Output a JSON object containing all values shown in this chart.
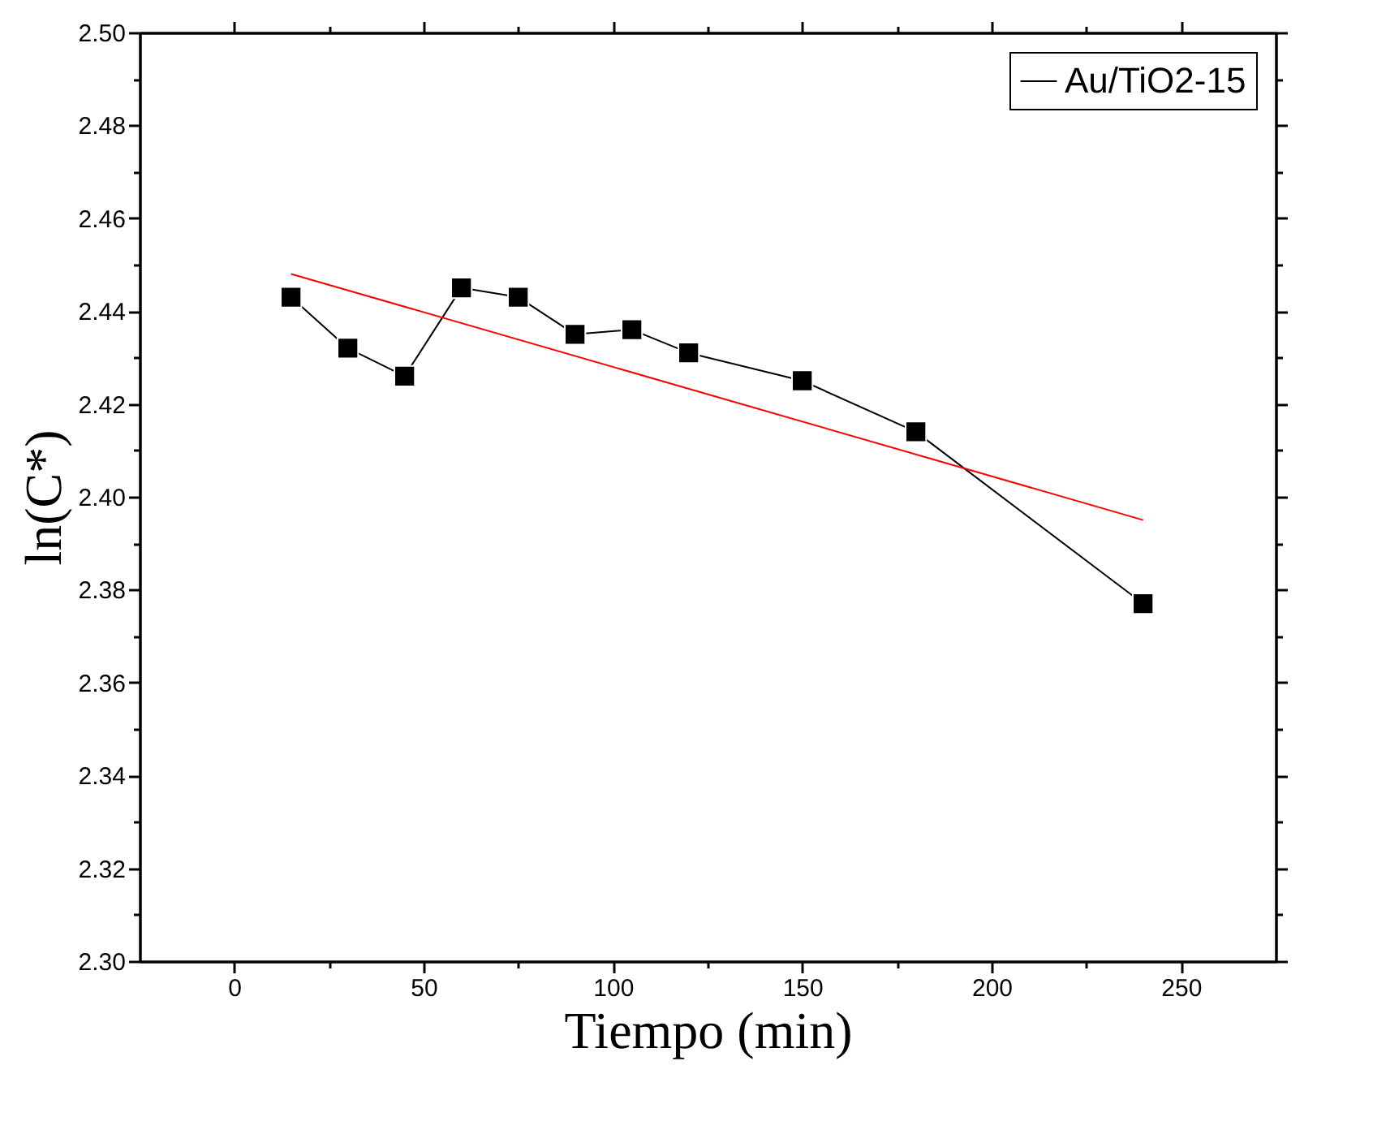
{
  "chart_data": {
    "type": "line",
    "xlabel": "Tiempo (min)",
    "ylabel": "ln(C*)",
    "marker": "square",
    "legend": "top right",
    "grid": false,
    "xlim": [
      -25,
      275
    ],
    "xticks": [
      0,
      50,
      100,
      150,
      200,
      250,
      {
        "value": 25,
        "label": null
      },
      {
        "value": 75,
        "label": null
      },
      {
        "value": 125,
        "label": null
      },
      {
        "value": 175,
        "label": null
      },
      {
        "value": 225,
        "label": null
      }
    ],
    "ylim": [
      2.3,
      2.5
    ],
    "yticks": [
      {
        "value": 2.3,
        "label": "2.30"
      },
      {
        "value": 2.32,
        "label": "2.32"
      },
      {
        "value": 2.34,
        "label": "2.34"
      },
      {
        "value": 2.36,
        "label": "2.36"
      },
      {
        "value": 2.38,
        "label": "2.38"
      },
      {
        "value": 2.4,
        "label": "2.40"
      },
      {
        "value": 2.42,
        "label": "2.42"
      },
      {
        "value": 2.44,
        "label": "2.44"
      },
      {
        "value": 2.46,
        "label": "2.46"
      },
      {
        "value": 2.48,
        "label": "2.48"
      },
      {
        "value": 2.5,
        "label": "2.50"
      },
      {
        "value": 2.31,
        "label": null
      },
      {
        "value": 2.33,
        "label": null
      },
      {
        "value": 2.35,
        "label": null
      },
      {
        "value": 2.37,
        "label": null
      },
      {
        "value": 2.39,
        "label": null
      },
      {
        "value": 2.41,
        "label": null
      },
      {
        "value": 2.43,
        "label": null
      },
      {
        "value": 2.45,
        "label": null
      },
      {
        "value": 2.47,
        "label": null
      },
      {
        "value": 2.49,
        "label": null
      }
    ],
    "series": [
      {
        "name": "Au/TiO2-15",
        "color": "#000000",
        "x": [
          15,
          30,
          45,
          60,
          75,
          90,
          105,
          120,
          150,
          180,
          240
        ],
        "values": [
          2.443,
          2.432,
          2.426,
          2.445,
          2.443,
          2.435,
          2.436,
          2.431,
          2.425,
          2.414,
          2.377
        ]
      },
      {
        "type": "line",
        "color": "#ff0000",
        "marker": "none",
        "x": [
          15,
          240
        ],
        "values": [
          2.448,
          2.395
        ]
      }
    ]
  }
}
